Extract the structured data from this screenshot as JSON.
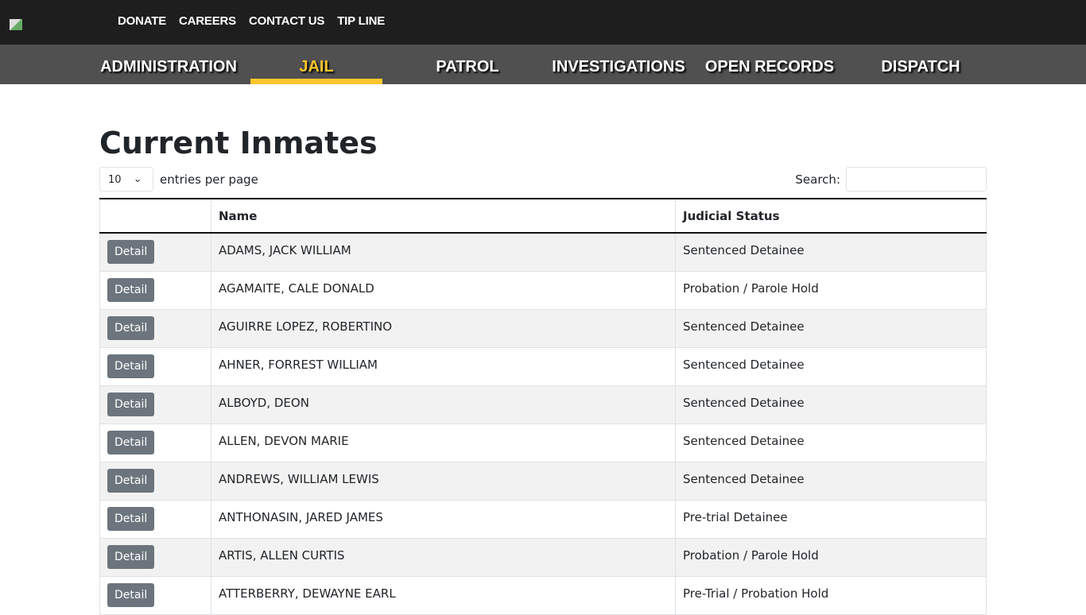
{
  "top_links": [
    "DONATE",
    "CAREERS",
    "CONTACT US",
    "TIP LINE"
  ],
  "nav": [
    "ADMINISTRATION",
    "JAIL",
    "PATROL",
    "INVESTIGATIONS",
    "OPEN RECORDS",
    "DISPATCH"
  ],
  "active_nav": "JAIL",
  "title": "Current Inmates",
  "entries": {
    "value": "10",
    "label": "entries per page"
  },
  "search": {
    "label": "Search:",
    "value": ""
  },
  "table": {
    "headers": [
      "",
      "Name",
      "Judicial Status"
    ],
    "button": "Detail",
    "rows": [
      [
        "ADAMS, JACK WILLIAM",
        "Sentenced Detainee"
      ],
      [
        "AGAMAITE, CALE DONALD",
        "Probation / Parole Hold"
      ],
      [
        "AGUIRRE LOPEZ, ROBERTINO",
        "Sentenced Detainee"
      ],
      [
        "AHNER, FORREST WILLIAM",
        "Sentenced Detainee"
      ],
      [
        "ALBOYD, DEON",
        "Sentenced Detainee"
      ],
      [
        "ALLEN, DEVON MARIE",
        "Sentenced Detainee"
      ],
      [
        "ANDREWS, WILLIAM LEWIS",
        "Sentenced Detainee"
      ],
      [
        "ANTHONASIN, JARED JAMES",
        "Pre-trial Detainee"
      ],
      [
        "ARTIS, ALLEN CURTIS",
        "Probation / Parole Hold"
      ],
      [
        "ATTERBERRY, DEWAYNE EARL",
        "Pre-Trial / Probation Hold"
      ]
    ]
  },
  "colors": {
    "accent": "#fcc62c",
    "topbar": "#1e1e1e",
    "navbar": "#505050",
    "button": "#6c757d"
  }
}
